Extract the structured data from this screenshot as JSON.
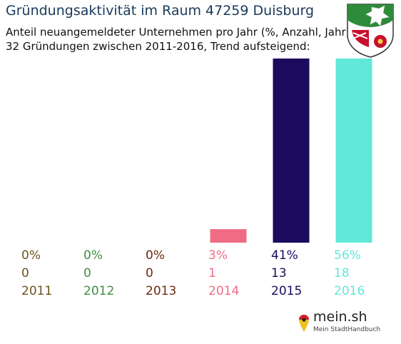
{
  "header": {
    "title": "Gründungsaktivität im Raum 47259 Duisburg",
    "subtitle_line1": "Anteil neuangemeldeter Unternehmen pro Jahr (%, Anzahl, Jahr)",
    "subtitle_line2": "32 Gründungen zwischen 2011-2016, Trend aufsteigend:"
  },
  "branding": {
    "name": "mein.sh",
    "tagline": "Mein StadtHandbuch"
  },
  "chart_data": {
    "type": "bar",
    "categories": [
      "2011",
      "2012",
      "2013",
      "2014",
      "2015",
      "2016"
    ],
    "values": [
      0,
      0,
      0,
      3,
      41,
      56
    ],
    "counts": [
      0,
      0,
      0,
      1,
      13,
      18
    ],
    "value_labels": [
      "0%",
      "0%",
      "0%",
      "3%",
      "41%",
      "56%"
    ],
    "count_labels": [
      "0",
      "0",
      "0",
      "1",
      "13",
      "18"
    ],
    "colors": [
      "#6b5421",
      "#3e8e3e",
      "#6e2a10",
      "#f06c85",
      "#1c0a5e",
      "#62e8d8"
    ],
    "ylim": [
      0,
      41
    ],
    "grid": false,
    "legend": "none"
  }
}
